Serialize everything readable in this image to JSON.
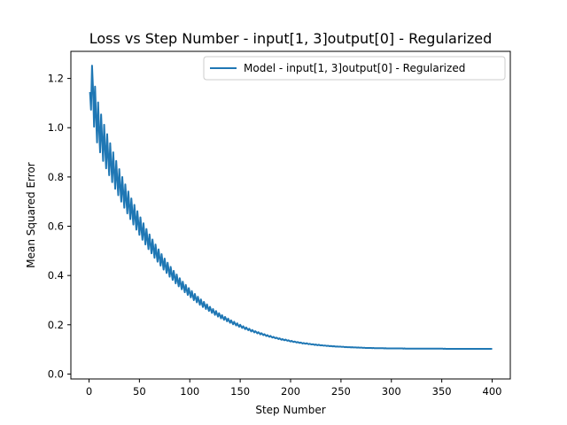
{
  "chart_data": {
    "type": "line",
    "title": "Loss vs Step Number - input[1, 3]output[0] - Regularized",
    "xlabel": "Step Number",
    "ylabel": "Mean Squared Error",
    "xlim": [
      -18,
      418
    ],
    "ylim": [
      -0.02,
      1.31
    ],
    "xticks": [
      0,
      50,
      100,
      150,
      200,
      250,
      300,
      350,
      400
    ],
    "yticks": [
      0.0,
      0.2,
      0.4,
      0.6,
      0.8,
      1.0,
      1.2
    ],
    "xtick_labels": [
      "0",
      "50",
      "100",
      "150",
      "200",
      "250",
      "300",
      "350",
      "400"
    ],
    "ytick_labels": [
      "0.0",
      "0.2",
      "0.4",
      "0.6",
      "0.8",
      "1.0",
      "1.2"
    ],
    "grid": false,
    "legend_position": "top-right",
    "series": [
      {
        "name": "Model - input[1, 3]output[0] - Regularized",
        "color": "#1f77b4",
        "x": [
          1,
          2,
          3,
          4,
          5,
          6,
          7,
          8,
          9,
          10,
          11,
          12,
          13,
          14,
          15,
          16,
          17,
          18,
          19,
          20,
          21,
          22,
          23,
          24,
          25,
          26,
          27,
          28,
          29,
          30,
          31,
          32,
          33,
          34,
          35,
          36,
          37,
          38,
          39,
          40,
          41,
          42,
          43,
          44,
          45,
          46,
          47,
          48,
          49,
          50,
          51,
          52,
          53,
          54,
          55,
          56,
          57,
          58,
          59,
          60,
          61,
          62,
          63,
          64,
          65,
          66,
          67,
          68,
          69,
          70,
          71,
          72,
          73,
          74,
          75,
          76,
          77,
          78,
          79,
          80,
          81,
          82,
          83,
          84,
          85,
          86,
          87,
          88,
          89,
          90,
          91,
          92,
          93,
          94,
          95,
          96,
          97,
          98,
          99,
          100,
          101,
          102,
          103,
          104,
          105,
          106,
          107,
          108,
          109,
          110,
          111,
          112,
          113,
          114,
          115,
          116,
          117,
          118,
          119,
          120,
          121,
          122,
          123,
          124,
          125,
          126,
          127,
          128,
          129,
          130,
          131,
          132,
          133,
          134,
          135,
          136,
          137,
          138,
          139,
          140,
          141,
          142,
          143,
          144,
          145,
          146,
          147,
          148,
          149,
          150,
          151,
          152,
          153,
          154,
          155,
          156,
          157,
          158,
          159,
          160,
          161,
          162,
          163,
          164,
          165,
          166,
          167,
          168,
          169,
          170,
          171,
          172,
          173,
          174,
          175,
          176,
          177,
          178,
          179,
          180,
          181,
          182,
          183,
          184,
          185,
          186,
          187,
          188,
          189,
          190,
          191,
          192,
          193,
          194,
          195,
          196,
          197,
          198,
          199,
          200,
          201,
          202,
          203,
          204,
          205,
          206,
          207,
          208,
          209,
          210,
          211,
          212,
          213,
          214,
          215,
          216,
          217,
          218,
          219,
          220,
          221,
          222,
          223,
          224,
          225,
          226,
          227,
          228,
          229,
          230,
          231,
          232,
          233,
          234,
          235,
          236,
          237,
          238,
          239,
          240,
          241,
          242,
          243,
          244,
          245,
          246,
          247,
          248,
          249,
          250,
          251,
          252,
          253,
          254,
          255,
          256,
          257,
          258,
          259,
          260,
          261,
          262,
          263,
          264,
          265,
          266,
          267,
          268,
          269,
          270,
          271,
          272,
          273,
          274,
          275,
          276,
          277,
          278,
          279,
          280,
          281,
          282,
          283,
          284,
          285,
          286,
          287,
          288,
          289,
          290,
          291,
          292,
          293,
          294,
          295,
          296,
          297,
          298,
          299,
          300,
          301,
          302,
          303,
          304,
          305,
          306,
          307,
          308,
          309,
          310,
          311,
          312,
          313,
          314,
          315,
          316,
          317,
          318,
          319,
          320,
          321,
          322,
          323,
          324,
          325,
          326,
          327,
          328,
          329,
          330,
          331,
          332,
          333,
          334,
          335,
          336,
          337,
          338,
          339,
          340,
          341,
          342,
          343,
          344,
          345,
          346,
          347,
          348,
          349,
          350,
          351,
          352,
          353,
          354,
          355,
          356,
          357,
          358,
          359,
          360,
          361,
          362,
          363,
          364,
          365,
          366,
          367,
          368,
          369,
          370,
          371,
          372,
          373,
          374,
          375,
          376,
          377,
          378,
          379,
          380,
          381,
          382,
          383,
          384,
          385,
          386,
          387,
          388,
          389,
          390,
          391,
          392,
          393,
          394,
          395,
          396,
          397,
          398,
          399,
          400
        ],
        "y": [
          1.145,
          1.073,
          1.252,
          1.157,
          1.004,
          1.167,
          1.041,
          0.94,
          1.103,
          0.994,
          0.9,
          1.054,
          0.953,
          0.865,
          1.012,
          0.917,
          0.835,
          0.974,
          0.885,
          0.807,
          0.937,
          0.853,
          0.779,
          0.9,
          0.822,
          0.752,
          0.865,
          0.791,
          0.726,
          0.832,
          0.762,
          0.7,
          0.8,
          0.735,
          0.675,
          0.77,
          0.708,
          0.652,
          0.741,
          0.682,
          0.629,
          0.713,
          0.658,
          0.607,
          0.687,
          0.634,
          0.586,
          0.661,
          0.611,
          0.565,
          0.636,
          0.589,
          0.545,
          0.612,
          0.567,
          0.526,
          0.589,
          0.546,
          0.507,
          0.567,
          0.527,
          0.49,
          0.546,
          0.508,
          0.472,
          0.526,
          0.489,
          0.456,
          0.506,
          0.472,
          0.44,
          0.487,
          0.455,
          0.424,
          0.469,
          0.439,
          0.41,
          0.452,
          0.423,
          0.395,
          0.435,
          0.408,
          0.382,
          0.419,
          0.393,
          0.368,
          0.404,
          0.379,
          0.356,
          0.389,
          0.366,
          0.344,
          0.375,
          0.353,
          0.332,
          0.362,
          0.341,
          0.321,
          0.349,
          0.329,
          0.311,
          0.337,
          0.318,
          0.3,
          0.325,
          0.307,
          0.291,
          0.314,
          0.297,
          0.281,
          0.303,
          0.287,
          0.272,
          0.293,
          0.278,
          0.264,
          0.283,
          0.269,
          0.256,
          0.273,
          0.26,
          0.248,
          0.264,
          0.252,
          0.24,
          0.256,
          0.244,
          0.233,
          0.247,
          0.237,
          0.226,
          0.239,
          0.229,
          0.22,
          0.232,
          0.223,
          0.214,
          0.225,
          0.216,
          0.208,
          0.218,
          0.21,
          0.202,
          0.212,
          0.204,
          0.197,
          0.206,
          0.198,
          0.192,
          0.2,
          0.193,
          0.187,
          0.194,
          0.188,
          0.182,
          0.189,
          0.183,
          0.178,
          0.184,
          0.178,
          0.173,
          0.179,
          0.174,
          0.169,
          0.174,
          0.17,
          0.165,
          0.17,
          0.166,
          0.161,
          0.166,
          0.162,
          0.158,
          0.162,
          0.158,
          0.154,
          0.158,
          0.154,
          0.151,
          0.155,
          0.151,
          0.148,
          0.151,
          0.148,
          0.145,
          0.148,
          0.145,
          0.142,
          0.145,
          0.142,
          0.139,
          0.142,
          0.139,
          0.137,
          0.14,
          0.137,
          0.135,
          0.137,
          0.134,
          0.132,
          0.135,
          0.132,
          0.13,
          0.132,
          0.13,
          0.128,
          0.13,
          0.128,
          0.126,
          0.128,
          0.126,
          0.124,
          0.126,
          0.124,
          0.123,
          0.125,
          0.123,
          0.121,
          0.123,
          0.121,
          0.12,
          0.121,
          0.12,
          0.118,
          0.12,
          0.118,
          0.117,
          0.119,
          0.117,
          0.116,
          0.117,
          0.116,
          0.115,
          0.116,
          0.115,
          0.114,
          0.115,
          0.114,
          0.113,
          0.114,
          0.113,
          0.112,
          0.113,
          0.112,
          0.111,
          0.112,
          0.111,
          0.111,
          0.111,
          0.111,
          0.11,
          0.111,
          0.11,
          0.109,
          0.11,
          0.109,
          0.109,
          0.109,
          0.109,
          0.108,
          0.109,
          0.108,
          0.108,
          0.108,
          0.108,
          0.107,
          0.108,
          0.107,
          0.107,
          0.107,
          0.107,
          0.106,
          0.107,
          0.106,
          0.106,
          0.106,
          0.106,
          0.106,
          0.106,
          0.106,
          0.105,
          0.106,
          0.105,
          0.105,
          0.105,
          0.105,
          0.105,
          0.105,
          0.105,
          0.105,
          0.105,
          0.105,
          0.104,
          0.105,
          0.104,
          0.104,
          0.104,
          0.104,
          0.104,
          0.104,
          0.104,
          0.104,
          0.104,
          0.104,
          0.104,
          0.104,
          0.104,
          0.104,
          0.104,
          0.104,
          0.104,
          0.103,
          0.104,
          0.103,
          0.103,
          0.103,
          0.103,
          0.103,
          0.103,
          0.103,
          0.103,
          0.103,
          0.103,
          0.103,
          0.103,
          0.103,
          0.103,
          0.103,
          0.103,
          0.103,
          0.103,
          0.103,
          0.103,
          0.103,
          0.103,
          0.103,
          0.103,
          0.103,
          0.103,
          0.103,
          0.103,
          0.103,
          0.103,
          0.103,
          0.103,
          0.103,
          0.103,
          0.103,
          0.103,
          0.103,
          0.103,
          0.102,
          0.103,
          0.102,
          0.102,
          0.102,
          0.102,
          0.102,
          0.102,
          0.102,
          0.102,
          0.102,
          0.102,
          0.102,
          0.102,
          0.102,
          0.102,
          0.102,
          0.102,
          0.102,
          0.102,
          0.102,
          0.102,
          0.102,
          0.102,
          0.102,
          0.102,
          0.102,
          0.102,
          0.102,
          0.102,
          0.102,
          0.102,
          0.102,
          0.102,
          0.102,
          0.102,
          0.102,
          0.102,
          0.102,
          0.102,
          0.102,
          0.102,
          0.102,
          0.102,
          0.102,
          0.102,
          0.102,
          0.102,
          0.102
        ]
      }
    ]
  }
}
